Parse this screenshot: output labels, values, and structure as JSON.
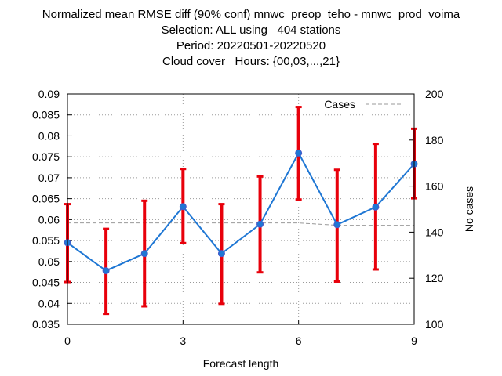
{
  "title_lines": [
    "Normalized mean RMSE diff (90% conf) mnwc_preop_teho - mnwc_prod_voima",
    "Selection: ALL using   404 stations",
    "Period: 20220501-20220520",
    "Cloud cover   Hours: {00,03,...,21}"
  ],
  "chart_data": {
    "type": "line",
    "xlabel": "Forecast length",
    "ylabel": "",
    "y2label": "No cases",
    "xlim": [
      0,
      9
    ],
    "ylim": [
      0.035,
      0.09
    ],
    "y2lim": [
      100,
      200
    ],
    "xticks": [
      "0",
      "3",
      "6",
      "9"
    ],
    "yticks": [
      "0.035",
      "0.04",
      "0.045",
      "0.05",
      "0.055",
      "0.06",
      "0.065",
      "0.07",
      "0.075",
      "0.08",
      "0.085",
      "0.09"
    ],
    "y2ticks": [
      "100",
      "120",
      "140",
      "160",
      "180",
      "200"
    ],
    "grid": true,
    "legend": "top-right",
    "x": [
      0,
      1,
      2,
      3,
      4,
      5,
      6,
      7,
      8,
      9
    ],
    "series": [
      {
        "name": "",
        "axis": "left",
        "values": [
          0.0545,
          0.0478,
          0.0519,
          0.0631,
          0.0519,
          0.0589,
          0.0759,
          0.0588,
          0.063,
          0.0733
        ],
        "ci_low": [
          0.0451,
          0.0375,
          0.0393,
          0.0544,
          0.0399,
          0.0474,
          0.0648,
          0.0452,
          0.0481,
          0.0651
        ],
        "ci_high": [
          0.0637,
          0.0578,
          0.0645,
          0.0721,
          0.0637,
          0.0703,
          0.0869,
          0.0719,
          0.0781,
          0.0817
        ],
        "color": "#1f77d4",
        "error_color": "#e8000b"
      },
      {
        "name": "Cases",
        "axis": "right",
        "values": [
          144,
          144,
          144,
          144,
          144,
          144,
          144,
          143,
          143,
          143
        ],
        "color": "#999999",
        "dash": true
      }
    ]
  }
}
